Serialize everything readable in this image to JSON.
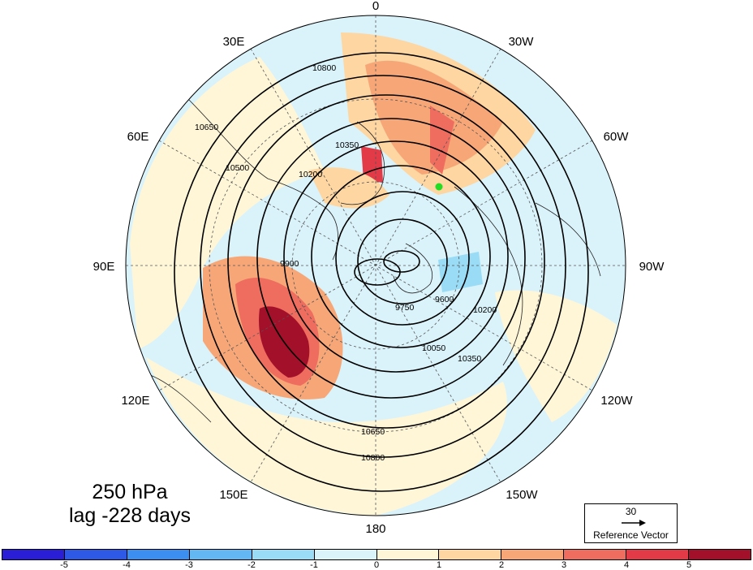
{
  "map": {
    "longitude_labels": [
      "0",
      "30W",
      "60W",
      "90W",
      "120W",
      "150W",
      "180",
      "150E",
      "120E",
      "90E",
      "60E",
      "30E"
    ],
    "contour_labels": [
      "10800",
      "10650",
      "10500",
      "10350",
      "10200",
      "10050",
      "9900",
      "9750",
      "9600"
    ],
    "marker_color": "#22dd22"
  },
  "annotation": {
    "level": "250 hPa",
    "lag": "lag -228 days"
  },
  "reference_vector": {
    "value": "30",
    "title": "Reference Vector"
  },
  "colorbar": {
    "ticks": [
      "-5",
      "-4",
      "-3",
      "-2",
      "-1",
      "0",
      "1",
      "2",
      "3",
      "4",
      "5"
    ],
    "colors": [
      "#2a1fd6",
      "#2e58e6",
      "#3c8ef0",
      "#63b8f3",
      "#9adcf6",
      "#daf3fa",
      "#fff6d8",
      "#fdd6a2",
      "#f7a777",
      "#ef6d5f",
      "#e23a46",
      "#a3102a"
    ]
  }
}
